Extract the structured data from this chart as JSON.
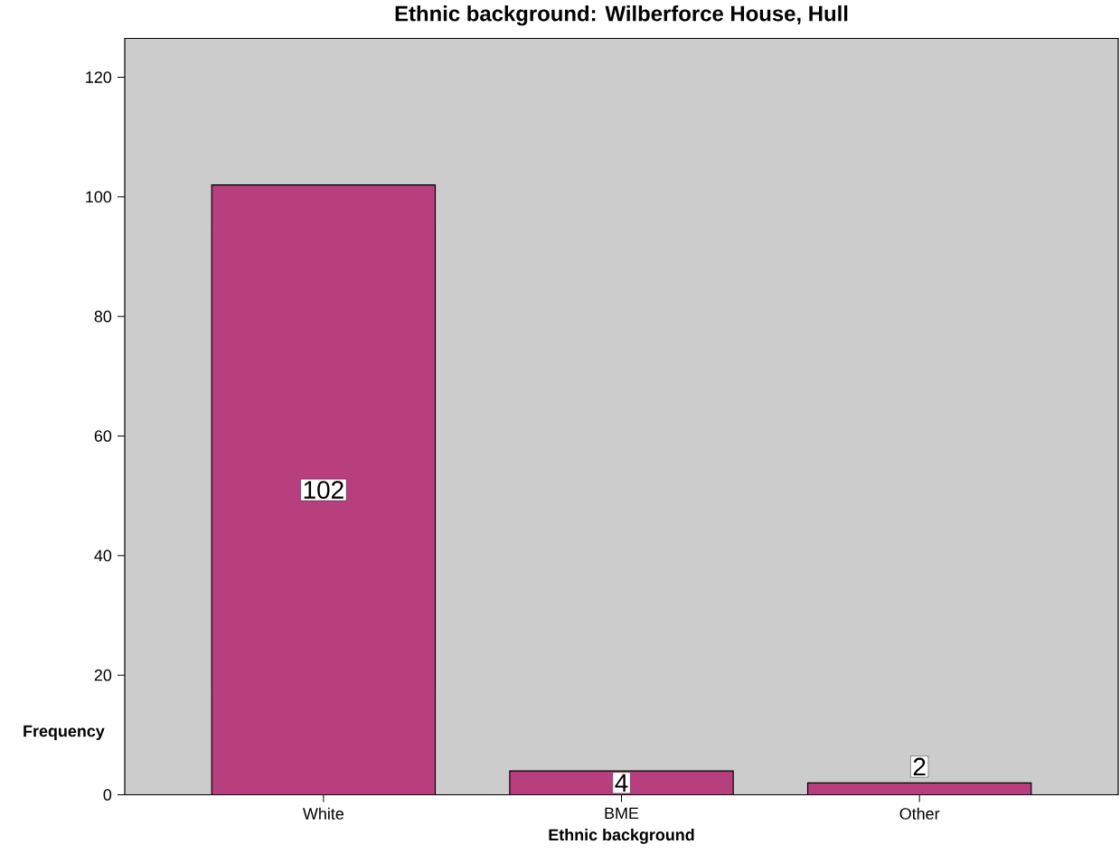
{
  "chart_data": {
    "type": "bar",
    "title": "Ethnic background: Wilberforce House, Hull",
    "xlabel": "Ethnic background",
    "ylabel": "Frequency",
    "categories": [
      "White",
      "BME",
      "Other"
    ],
    "values": [
      102,
      4,
      2
    ],
    "color": "#b83f7e",
    "ylim": [
      0,
      126.5
    ],
    "yticks": [
      0,
      20,
      40,
      60,
      80,
      100,
      120
    ],
    "data_labels": true
  }
}
